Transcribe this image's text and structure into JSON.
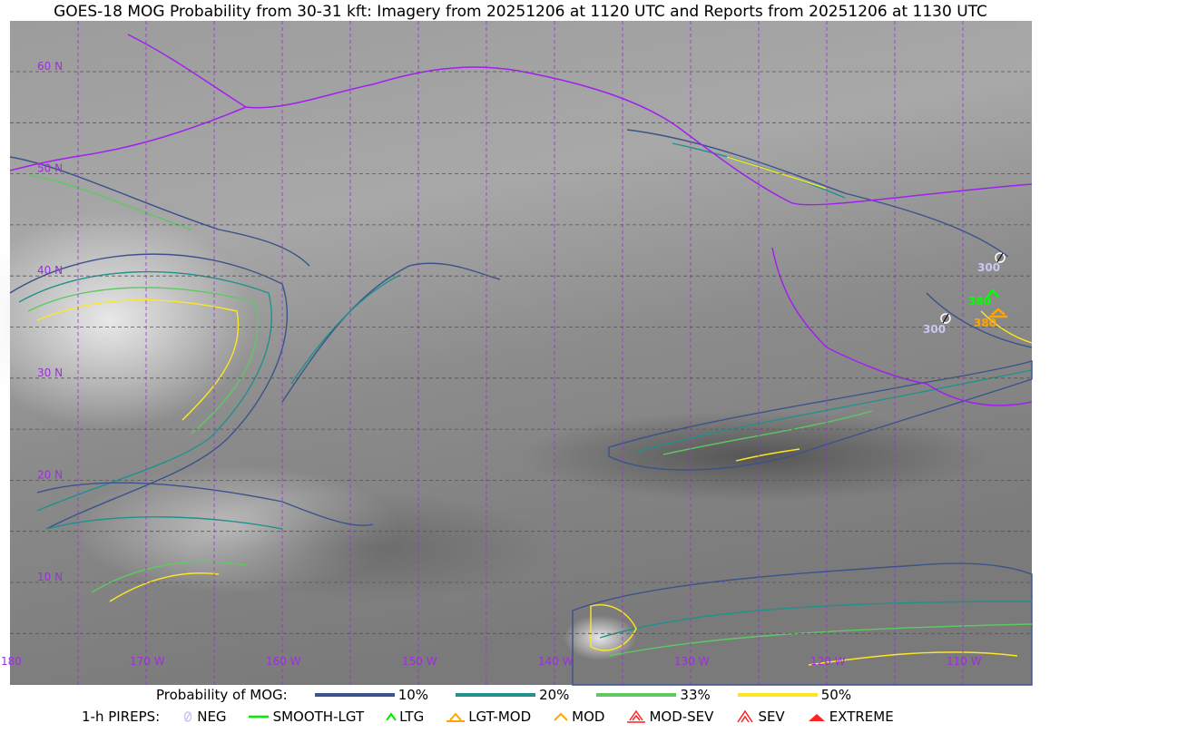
{
  "title": "GOES-18 MOG Probability from 30-31 kft: Imagery from 20251206 at 1120 UTC and Reports from 20251206 at 1130 UTC",
  "map": {
    "lat_labels": [
      "60 N",
      "50 N",
      "40 N",
      "30 N",
      "20 N",
      "10 N"
    ],
    "lon_labels": [
      "180",
      "170 W",
      "160 W",
      "150 W",
      "140 W",
      "130 W",
      "120 W",
      "110 W"
    ],
    "grid_color": "#9b30d9",
    "coastline_color": "#a020f0",
    "pireps": [
      {
        "type": "NEG",
        "altitude": "300",
        "color": "#c8c8f0"
      },
      {
        "type": "LTG",
        "altitude": "380",
        "color": "#00ff00"
      },
      {
        "type": "LGT-MOD",
        "altitude": "380",
        "color": "#ffa500"
      },
      {
        "type": "NEG",
        "altitude": "300",
        "color": "#c8c8f0"
      }
    ]
  },
  "legend": {
    "prob_label": "Probability of MOG:",
    "levels": [
      {
        "label": "10%",
        "color": "#3b528b"
      },
      {
        "label": "20%",
        "color": "#21918c"
      },
      {
        "label": "33%",
        "color": "#5ec962"
      },
      {
        "label": "50%",
        "color": "#fde725"
      }
    ],
    "pirep_label": "1-h PIREPS:",
    "pirep_types": [
      {
        "label": "NEG",
        "icon": "neg-slash-circle-icon",
        "color": "#c8c8f0"
      },
      {
        "label": "SMOOTH-LGT",
        "icon": "smooth-lgt-line-icon",
        "color": "#00ee00"
      },
      {
        "label": "LTG",
        "icon": "ltg-caret-icon",
        "color": "#00ee00"
      },
      {
        "label": "LGT-MOD",
        "icon": "lgt-mod-caret-bar-icon",
        "color": "#ffa500"
      },
      {
        "label": "MOD",
        "icon": "mod-caret-icon",
        "color": "#ffa500"
      },
      {
        "label": "MOD-SEV",
        "icon": "mod-sev-double-caret-bar-icon",
        "color": "#ff2020"
      },
      {
        "label": "SEV",
        "icon": "sev-double-caret-icon",
        "color": "#ff2020"
      },
      {
        "label": "EXTREME",
        "icon": "extreme-triangle-icon",
        "color": "#ff2020"
      }
    ]
  }
}
